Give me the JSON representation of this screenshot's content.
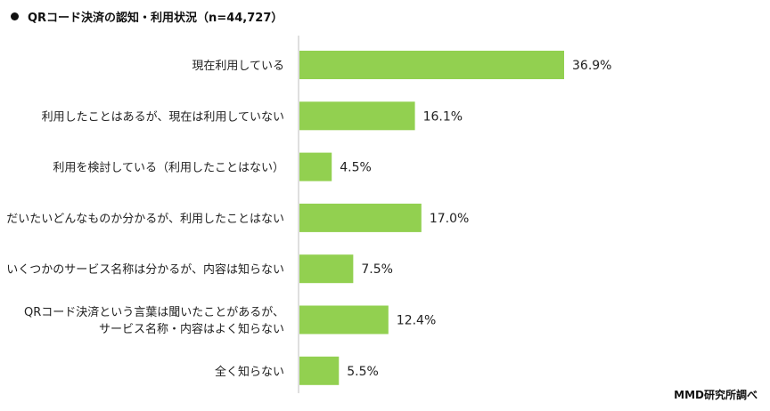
{
  "chart_data": {
    "type": "bar",
    "orientation": "horizontal",
    "title": "QRコード決済の認知・利用状況（n=44,727）",
    "categories": [
      [
        "現在利用している"
      ],
      [
        "利用したことはあるが、現在は利用していない"
      ],
      [
        "利用を検討している（利用したことはない）"
      ],
      [
        "だいたいどんなものか分かるが、利用したことはない"
      ],
      [
        "いくつかのサービス名称は分かるが、内容は知らない"
      ],
      [
        "QRコード決済という言葉は聞いたことがあるが、",
        "サービス名称・内容はよく知らない"
      ],
      [
        "全く知らない"
      ]
    ],
    "values": [
      36.9,
      16.1,
      4.5,
      17.0,
      7.5,
      12.4,
      5.5
    ],
    "value_labels": [
      "36.9%",
      "16.1%",
      "4.5%",
      "17.0%",
      "7.5%",
      "12.4%",
      "5.5%"
    ],
    "bar_color": "#92d050",
    "xlim": [
      0,
      40
    ],
    "grid": false,
    "legend": "none"
  },
  "source": "MMD研究所調べ"
}
